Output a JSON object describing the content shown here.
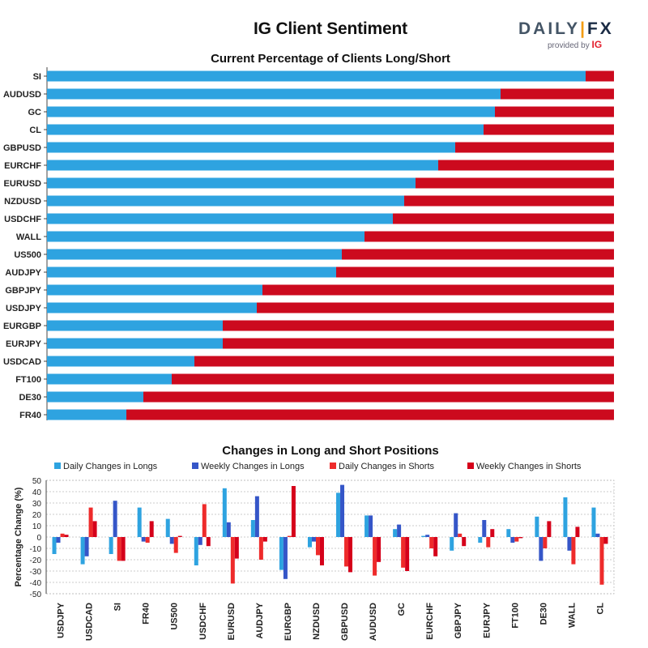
{
  "header": {
    "title": "IG Client Sentiment",
    "logo_text_a": "DAILY",
    "logo_text_bar": "|",
    "logo_text_b": "FX",
    "logo_provided": "provided by",
    "logo_ig": "IG"
  },
  "colors": {
    "long": "#2ea3e0",
    "short": "#cc0a1e",
    "daily_long": "#2ea3e0",
    "weekly_long": "#3556c8",
    "daily_short": "#ee2b2b",
    "weekly_short": "#d5001a"
  },
  "chart_data": [
    {
      "type": "bar",
      "orientation": "horizontal-stacked",
      "title": "Current Percentage of Clients Long/Short",
      "categories": [
        "SI",
        "AUDUSD",
        "GC",
        "CL",
        "GBPUSD",
        "EURCHF",
        "EURUSD",
        "NZDUSD",
        "USDCHF",
        "WALL",
        "US500",
        "AUDJPY",
        "GBPJPY",
        "USDJPY",
        "EURGBP",
        "EURJPY",
        "USDCAD",
        "FT100",
        "DE30",
        "FR40"
      ],
      "series": [
        {
          "values": [
            95,
            80,
            79,
            77,
            72,
            69,
            65,
            63,
            61,
            56,
            52,
            51,
            38,
            37,
            31,
            31,
            26,
            22,
            17,
            14
          ]
        },
        {
          "values": [
            5,
            20,
            21,
            23,
            28,
            31,
            35,
            37,
            39,
            44,
            48,
            49,
            62,
            63,
            69,
            69,
            74,
            78,
            83,
            86
          ]
        }
      ],
      "xlim": [
        0,
        100
      ]
    },
    {
      "type": "bar",
      "title": "Changes in Long and Short Positions",
      "ylabel": "Percentage Change (%)",
      "ylim": [
        -50,
        50
      ],
      "yticks": [
        50,
        40,
        30,
        20,
        10,
        0,
        -10,
        -20,
        -30,
        -40,
        -50
      ],
      "categories": [
        "USDJPY",
        "USDCAD",
        "SI",
        "FR40",
        "US500",
        "USDCHF",
        "EURUSD",
        "AUDJPY",
        "EURGBP",
        "NZDUSD",
        "GBPUSD",
        "AUDUSD",
        "GC",
        "EURCHF",
        "GBPJPY",
        "EURJPY",
        "FT100",
        "DE30",
        "WALL",
        "CL"
      ],
      "series": [
        {
          "name": "Daily Changes in Longs",
          "values": [
            -15,
            -24,
            -15,
            26,
            16,
            -25,
            43,
            15,
            -29,
            -9,
            39,
            19,
            7,
            1,
            -12,
            -5,
            7,
            18,
            35,
            26
          ]
        },
        {
          "name": "Weekly Changes in Longs",
          "values": [
            -5,
            -17,
            32,
            -4,
            -6,
            -7,
            13,
            36,
            -37,
            -4,
            46,
            19,
            11,
            2,
            21,
            15,
            -5,
            -21,
            -12,
            3
          ]
        },
        {
          "name": "Daily Changes in Shorts",
          "values": [
            3,
            26,
            -21,
            -5,
            -14,
            29,
            -41,
            -20,
            1,
            -16,
            -26,
            -34,
            -27,
            -10,
            3,
            -9,
            -4,
            -10,
            -24,
            -42
          ]
        },
        {
          "name": "Weekly Changes in Shorts",
          "values": [
            2,
            14,
            -21,
            14,
            1,
            -8,
            -19,
            -4,
            45,
            -25,
            -31,
            -22,
            -30,
            -17,
            -8,
            7,
            -1,
            14,
            9,
            -6
          ]
        }
      ]
    }
  ]
}
